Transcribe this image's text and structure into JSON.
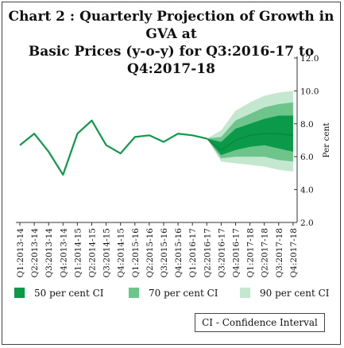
{
  "title_line1": "Chart 2 : Quarterly Projection of Growth in GVA at",
  "title_line2": "Basic Prices (y-o-y) for Q3:2016-17 to Q4:2017-18",
  "note": "CI - Confidence Interval",
  "colors": {
    "line": "#0e9a48",
    "ci50": "#0a9a4a",
    "ci70": "#6dc58b",
    "ci90": "#c4e7cf"
  },
  "chart_data": {
    "type": "area",
    "title": "Chart 2 : Quarterly Projection of Growth in GVA at Basic Prices (y-o-y) for Q3:2016-17 to Q4:2017-18",
    "ylabel": "Per cent",
    "ylim": [
      2.0,
      12.0
    ],
    "yticks": [
      "2.0",
      "4.0",
      "6.0",
      "8.0",
      "10.0",
      "12.0"
    ],
    "categories": [
      "Q1:2013-14",
      "Q2:2013-14",
      "Q3:2013-14",
      "Q4:2013-14",
      "Q1:2014-15",
      "Q2:2014-15",
      "Q3:2014-15",
      "Q4:2014-15",
      "Q1:2015-16",
      "Q2:2015-16",
      "Q3:2015-16",
      "Q4:2015-16",
      "Q1:2016-17",
      "Q2:2016-17",
      "Q3:2016-17",
      "Q4:2016-17",
      "Q1:2017-18",
      "Q2:2017-18",
      "Q3:2017-18",
      "Q4:2017-18"
    ],
    "actual": [
      6.7,
      7.4,
      6.3,
      4.9,
      7.4,
      8.2,
      6.7,
      6.2,
      7.2,
      7.3,
      6.9,
      7.4,
      7.3,
      7.1
    ],
    "projection": [
      {
        "q": "Q2:2016-17",
        "mid": 7.1,
        "lo50": 7.1,
        "hi50": 7.1,
        "lo70": 7.1,
        "hi70": 7.1,
        "lo90": 7.1,
        "hi90": 7.1
      },
      {
        "q": "Q3:2016-17",
        "mid": 6.4,
        "lo50": 6.1,
        "hi50": 6.9,
        "lo70": 5.9,
        "hi70": 7.2,
        "lo90": 5.7,
        "hi90": 7.6
      },
      {
        "q": "Q4:2016-17",
        "mid": 7.0,
        "lo50": 6.4,
        "hi50": 7.7,
        "lo70": 6.0,
        "hi70": 8.2,
        "lo90": 5.6,
        "hi90": 8.8
      },
      {
        "q": "Q1:2017-18",
        "mid": 7.3,
        "lo50": 6.6,
        "hi50": 8.0,
        "lo70": 6.0,
        "hi70": 8.6,
        "lo90": 5.5,
        "hi90": 9.3
      },
      {
        "q": "Q2:2017-18",
        "mid": 7.4,
        "lo50": 6.7,
        "hi50": 8.3,
        "lo70": 6.0,
        "hi70": 9.0,
        "lo90": 5.4,
        "hi90": 9.7
      },
      {
        "q": "Q3:2017-18",
        "mid": 7.4,
        "lo50": 6.5,
        "hi50": 8.5,
        "lo70": 5.8,
        "hi70": 9.2,
        "lo90": 5.2,
        "hi90": 9.9
      },
      {
        "q": "Q4:2017-18",
        "mid": 7.3,
        "lo50": 6.3,
        "hi50": 8.5,
        "lo70": 5.7,
        "hi70": 9.3,
        "lo90": 5.1,
        "hi90": 10.0
      }
    ],
    "legend": [
      "50 per cent CI",
      "70 per cent CI",
      "90 per cent CI"
    ],
    "legend_position": "bottom",
    "grid": false
  }
}
